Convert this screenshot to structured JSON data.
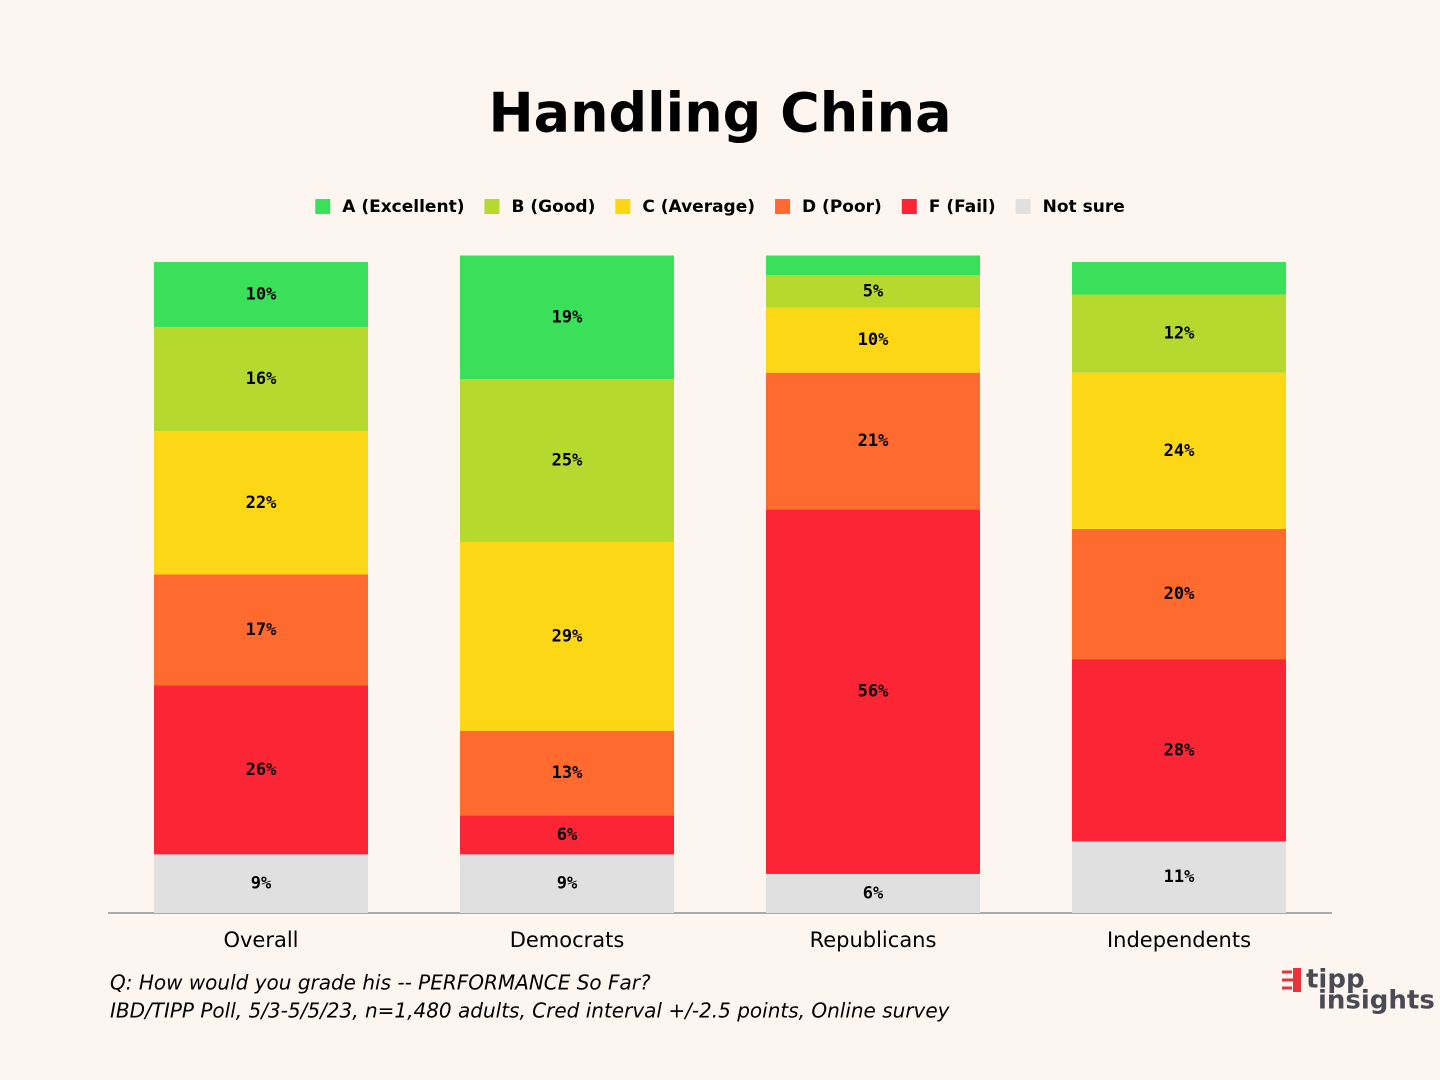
{
  "chart_data": {
    "type": "stacked_bar",
    "title": "Handling China",
    "categories": [
      "Overall",
      "Democrats",
      "Republicans",
      "Independents"
    ],
    "series": [
      {
        "name": "Not sure",
        "color": "#e0e0e0",
        "values": [
          9,
          9,
          6,
          11
        ],
        "value_labels": [
          "9%",
          "9%",
          "6%",
          "11%"
        ]
      },
      {
        "name": "F (Fail)",
        "color": "#fc2536",
        "values": [
          26,
          6,
          56,
          28
        ],
        "value_labels": [
          "26%",
          "6%",
          "56%",
          "28%"
        ]
      },
      {
        "name": "D (Poor)",
        "color": "#ff6a2f",
        "values": [
          17,
          13,
          21,
          20
        ],
        "value_labels": [
          "17%",
          "13%",
          "21%",
          "20%"
        ]
      },
      {
        "name": "C (Average)",
        "color": "#fcd715",
        "values": [
          22,
          29,
          10,
          24
        ],
        "value_labels": [
          "22%",
          "29%",
          "10%",
          "24%"
        ]
      },
      {
        "name": "B (Good)",
        "color": "#b5d92e",
        "values": [
          16,
          25,
          5,
          12
        ],
        "value_labels": [
          "16%",
          "25%",
          "5%",
          "12%"
        ]
      },
      {
        "name": "A (Excellent)",
        "color": "#3be05a",
        "values": [
          10,
          19,
          3,
          5
        ],
        "value_labels": [
          "10%",
          "19%",
          null,
          null
        ]
      }
    ],
    "legend_order": [
      5,
      4,
      3,
      2,
      1,
      0
    ],
    "ylim": [
      0,
      100
    ],
    "footnotes": [
      "Q:  How would you grade his -- PERFORMANCE So Far?",
      "IBD/TIPP Poll, 5/3-5/5/23, n=1,480 adults, Cred interval +/-2.5 points, Online survey"
    ]
  },
  "logo": {
    "line1": "tipp",
    "line2": "insights"
  }
}
